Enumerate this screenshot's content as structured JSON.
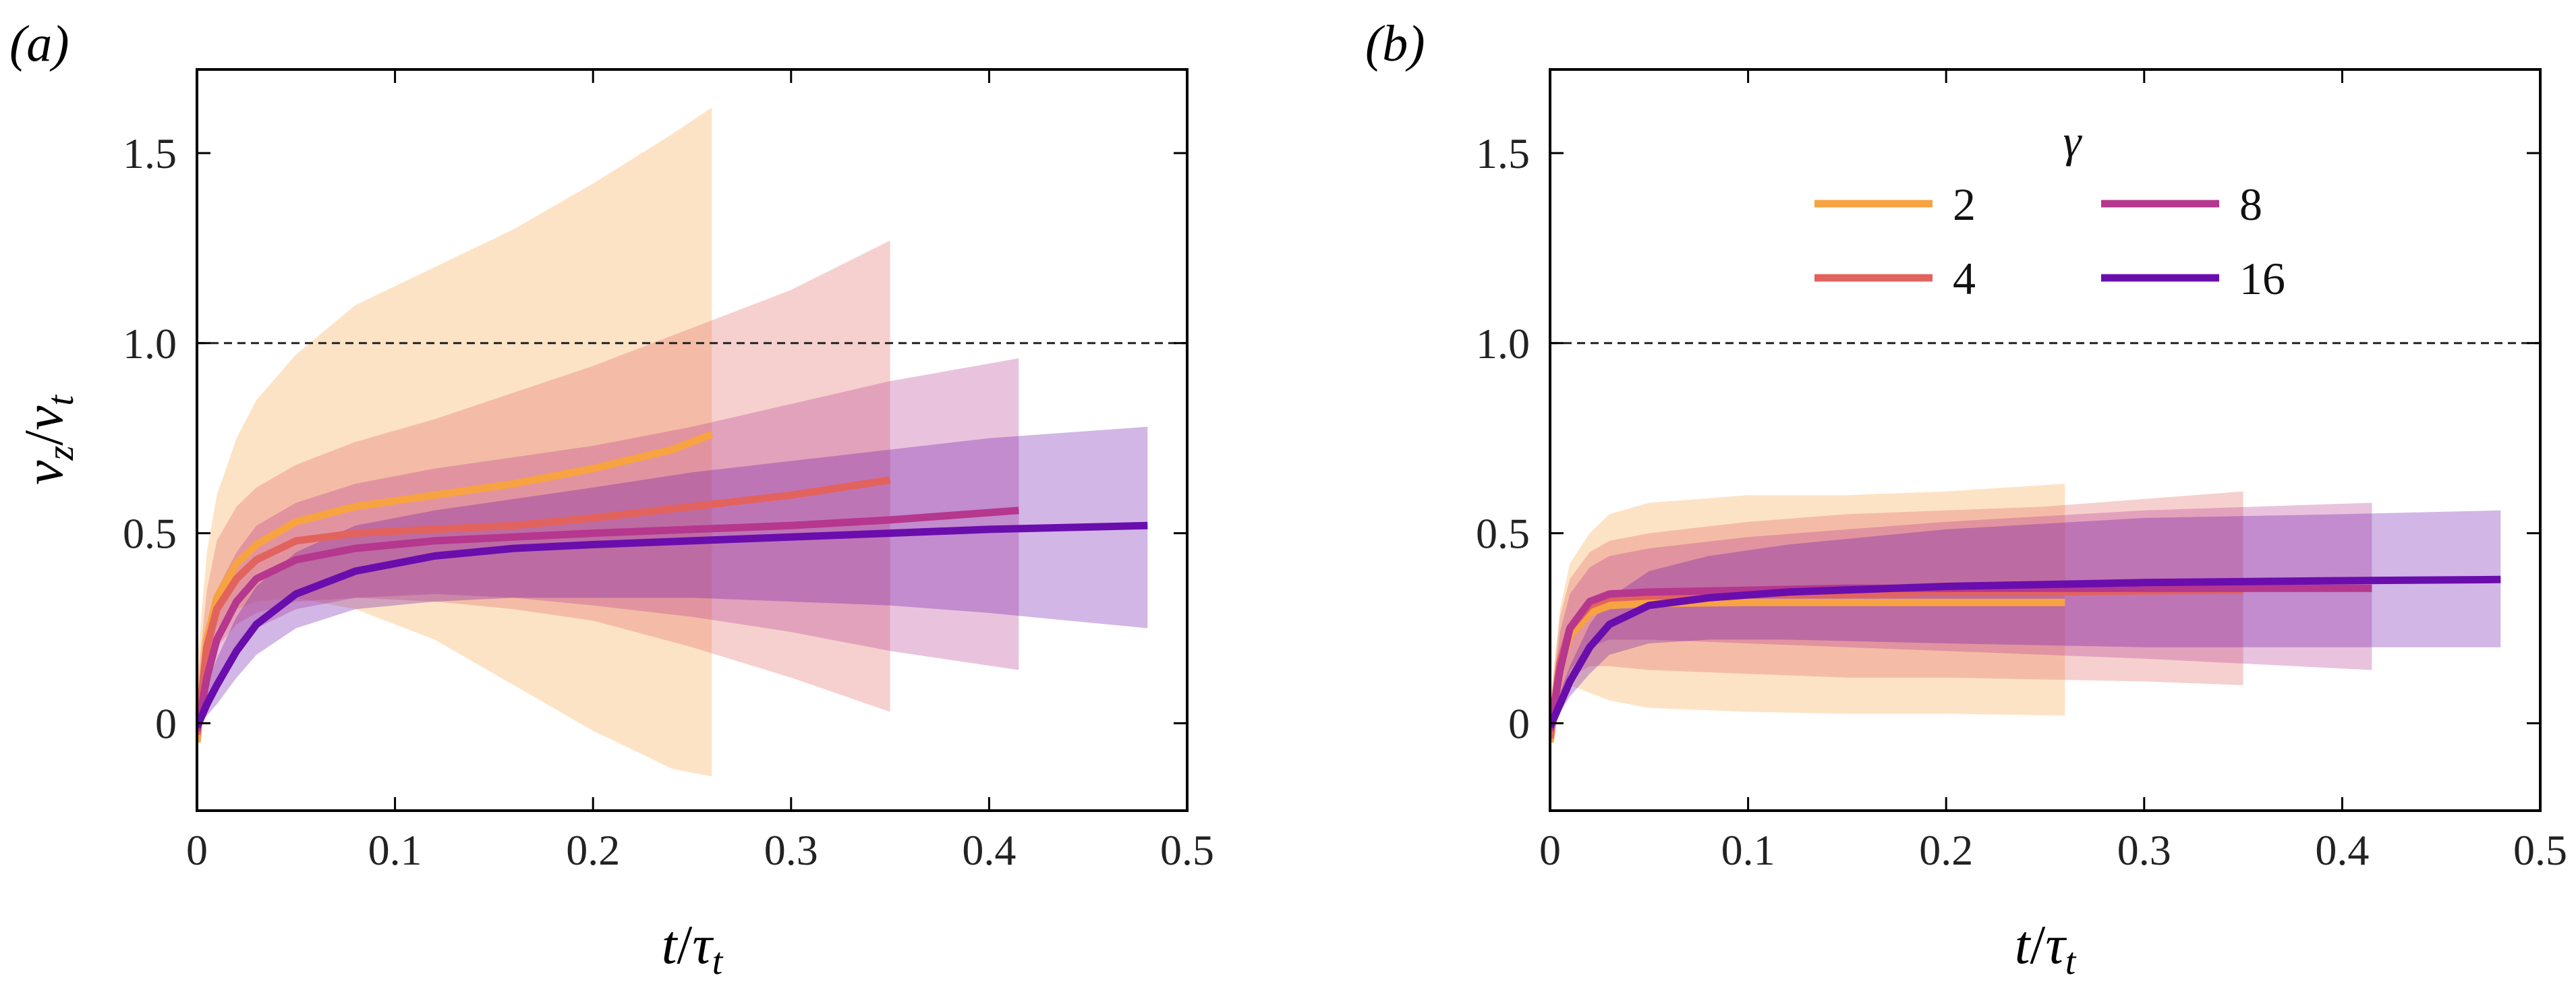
{
  "chart_data": [
    {
      "type": "line",
      "panel": "(a)",
      "xlabel_parts": {
        "t": "t",
        "slash": "/",
        "tau": "τ",
        "tau_sub": "t"
      },
      "ylabel_parts": {
        "v": "v",
        "v_sub": "z",
        "slash": "/",
        "v2": "v",
        "v2_sub": "t"
      },
      "xlim": [
        0,
        0.5
      ],
      "ylim": [
        -0.23,
        1.72
      ],
      "xticks": [
        0,
        0.1,
        0.2,
        0.3,
        0.4,
        0.5
      ],
      "xtick_labels": [
        "0",
        "0.1",
        "0.2",
        "0.3",
        "0.4",
        "0.5"
      ],
      "yticks": [
        0,
        0.5,
        1.0,
        1.5
      ],
      "ytick_labels": [
        "0",
        "0.5",
        "1.0",
        "1.5"
      ],
      "reference_line": {
        "y": 1.0,
        "style": "dashed"
      },
      "grid": false,
      "legend": null,
      "series": [
        {
          "name": "2",
          "color": "#F7A341",
          "x": [
            0,
            0.005,
            0.01,
            0.02,
            0.03,
            0.05,
            0.08,
            0.12,
            0.16,
            0.2,
            0.24,
            0.26
          ],
          "values": [
            -0.05,
            0.22,
            0.33,
            0.42,
            0.47,
            0.53,
            0.57,
            0.6,
            0.63,
            0.67,
            0.72,
            0.76
          ],
          "band": {
            "upper": [
              0.15,
              0.45,
              0.6,
              0.75,
              0.85,
              0.97,
              1.1,
              1.2,
              1.3,
              1.42,
              1.55,
              1.62
            ],
            "lower": [
              -0.05,
              0.15,
              0.25,
              0.3,
              0.32,
              0.33,
              0.3,
              0.22,
              0.1,
              -0.02,
              -0.12,
              -0.14
            ]
          }
        },
        {
          "name": "4",
          "color": "#E2635E",
          "x": [
            0,
            0.005,
            0.01,
            0.02,
            0.03,
            0.05,
            0.08,
            0.12,
            0.16,
            0.2,
            0.25,
            0.3,
            0.35
          ],
          "values": [
            -0.03,
            0.2,
            0.3,
            0.38,
            0.43,
            0.48,
            0.5,
            0.51,
            0.52,
            0.54,
            0.57,
            0.6,
            0.64
          ],
          "band": {
            "upper": [
              0.1,
              0.35,
              0.48,
              0.57,
              0.62,
              0.68,
              0.74,
              0.8,
              0.87,
              0.94,
              1.04,
              1.14,
              1.27
            ],
            "lower": [
              -0.03,
              0.1,
              0.2,
              0.26,
              0.29,
              0.32,
              0.33,
              0.32,
              0.3,
              0.27,
              0.2,
              0.12,
              0.03
            ]
          }
        },
        {
          "name": "8",
          "color": "#B5378E",
          "x": [
            0,
            0.005,
            0.01,
            0.02,
            0.03,
            0.05,
            0.08,
            0.12,
            0.16,
            0.2,
            0.25,
            0.3,
            0.35,
            0.415
          ],
          "values": [
            -0.02,
            0.12,
            0.22,
            0.32,
            0.38,
            0.43,
            0.46,
            0.48,
            0.49,
            0.5,
            0.51,
            0.52,
            0.535,
            0.56
          ],
          "band": {
            "upper": [
              0.05,
              0.22,
              0.35,
              0.45,
              0.52,
              0.58,
              0.63,
              0.67,
              0.7,
              0.73,
              0.78,
              0.84,
              0.9,
              0.96
            ],
            "lower": [
              -0.02,
              0.05,
              0.12,
              0.2,
              0.25,
              0.3,
              0.33,
              0.34,
              0.33,
              0.31,
              0.28,
              0.24,
              0.19,
              0.14
            ]
          }
        },
        {
          "name": "16",
          "color": "#6A0DAD",
          "x": [
            0,
            0.005,
            0.01,
            0.02,
            0.03,
            0.05,
            0.08,
            0.12,
            0.16,
            0.2,
            0.25,
            0.3,
            0.35,
            0.4,
            0.48
          ],
          "values": [
            -0.01,
            0.05,
            0.1,
            0.19,
            0.26,
            0.34,
            0.4,
            0.44,
            0.46,
            0.47,
            0.48,
            0.49,
            0.5,
            0.51,
            0.52
          ],
          "band": {
            "upper": [
              0.02,
              0.1,
              0.17,
              0.28,
              0.36,
              0.45,
              0.52,
              0.56,
              0.59,
              0.62,
              0.66,
              0.69,
              0.72,
              0.75,
              0.78
            ],
            "lower": [
              -0.01,
              0.02,
              0.05,
              0.12,
              0.18,
              0.25,
              0.3,
              0.32,
              0.33,
              0.33,
              0.33,
              0.32,
              0.31,
              0.29,
              0.25
            ]
          }
        }
      ]
    },
    {
      "type": "line",
      "panel": "(b)",
      "xlabel_parts": {
        "t": "t",
        "slash": "/",
        "tau": "τ",
        "tau_sub": "t"
      },
      "xlim": [
        0,
        0.5
      ],
      "ylim": [
        -0.23,
        1.72
      ],
      "xticks": [
        0,
        0.1,
        0.2,
        0.3,
        0.4,
        0.5
      ],
      "xtick_labels": [
        "0",
        "0.1",
        "0.2",
        "0.3",
        "0.4",
        "0.5"
      ],
      "yticks": [
        0,
        0.5,
        1.0,
        1.5
      ],
      "ytick_labels": [
        "0",
        "0.5",
        "1.0",
        "1.5"
      ],
      "reference_line": {
        "y": 1.0,
        "style": "dashed"
      },
      "grid": false,
      "legend": {
        "title": "γ",
        "placement": "upper-center",
        "entries": [
          "2",
          "8",
          "4",
          "16"
        ]
      },
      "series": [
        {
          "name": "2",
          "color": "#F7A341",
          "x": [
            0,
            0.005,
            0.01,
            0.02,
            0.03,
            0.05,
            0.1,
            0.15,
            0.2,
            0.26
          ],
          "values": [
            -0.05,
            0.15,
            0.23,
            0.29,
            0.31,
            0.315,
            0.318,
            0.318,
            0.318,
            0.318
          ],
          "band": {
            "upper": [
              0.05,
              0.3,
              0.42,
              0.5,
              0.55,
              0.58,
              0.6,
              0.6,
              0.61,
              0.63
            ],
            "lower": [
              -0.05,
              0.05,
              0.1,
              0.08,
              0.06,
              0.04,
              0.03,
              0.025,
              0.025,
              0.02
            ]
          }
        },
        {
          "name": "4",
          "color": "#E2635E",
          "x": [
            0,
            0.005,
            0.01,
            0.02,
            0.03,
            0.05,
            0.1,
            0.15,
            0.2,
            0.25,
            0.3,
            0.35
          ],
          "values": [
            -0.04,
            0.16,
            0.25,
            0.31,
            0.33,
            0.335,
            0.34,
            0.34,
            0.345,
            0.345,
            0.348,
            0.35
          ],
          "band": {
            "upper": [
              0.04,
              0.28,
              0.38,
              0.45,
              0.48,
              0.5,
              0.53,
              0.55,
              0.56,
              0.57,
              0.59,
              0.61
            ],
            "lower": [
              -0.04,
              0.06,
              0.12,
              0.15,
              0.15,
              0.14,
              0.13,
              0.12,
              0.12,
              0.115,
              0.11,
              0.1
            ]
          }
        },
        {
          "name": "8",
          "color": "#B5378E",
          "x": [
            0,
            0.005,
            0.01,
            0.02,
            0.03,
            0.05,
            0.1,
            0.15,
            0.2,
            0.3,
            0.415
          ],
          "values": [
            -0.02,
            0.14,
            0.25,
            0.32,
            0.34,
            0.345,
            0.35,
            0.355,
            0.355,
            0.355,
            0.355
          ],
          "band": {
            "upper": [
              0.02,
              0.24,
              0.34,
              0.41,
              0.44,
              0.46,
              0.49,
              0.51,
              0.53,
              0.56,
              0.58
            ],
            "lower": [
              -0.02,
              0.06,
              0.14,
              0.2,
              0.22,
              0.22,
              0.21,
              0.2,
              0.19,
              0.17,
              0.14
            ]
          }
        },
        {
          "name": "16",
          "color": "#6A0DAD",
          "x": [
            0,
            0.005,
            0.01,
            0.02,
            0.03,
            0.05,
            0.08,
            0.12,
            0.2,
            0.3,
            0.4,
            0.48
          ],
          "values": [
            -0.01,
            0.05,
            0.11,
            0.2,
            0.26,
            0.31,
            0.33,
            0.345,
            0.36,
            0.37,
            0.375,
            0.378
          ],
          "band": {
            "upper": [
              0.01,
              0.08,
              0.15,
              0.26,
              0.33,
              0.4,
              0.44,
              0.47,
              0.51,
              0.54,
              0.55,
              0.56
            ],
            "lower": [
              -0.01,
              0.03,
              0.07,
              0.13,
              0.18,
              0.21,
              0.22,
              0.22,
              0.21,
              0.2,
              0.2,
              0.2
            ]
          }
        }
      ]
    }
  ]
}
